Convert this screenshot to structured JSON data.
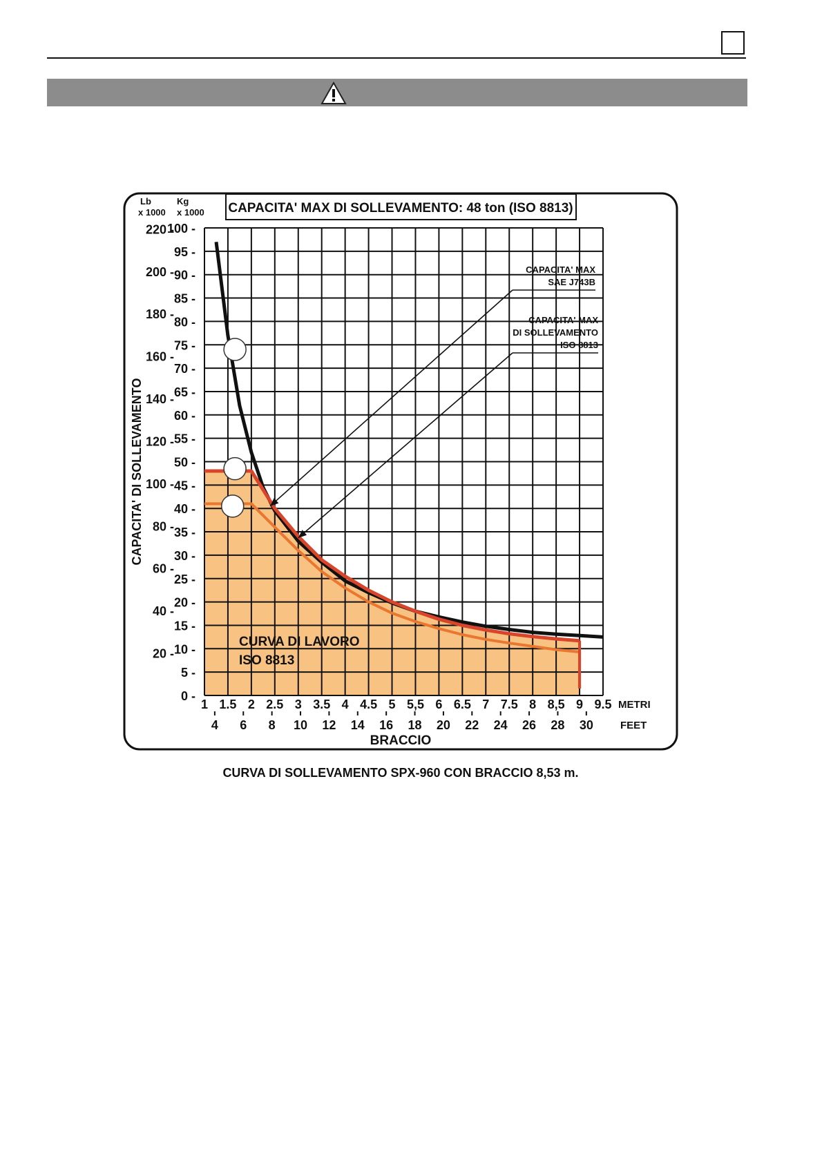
{
  "page": {
    "warning_icon": "warning-triangle-icon"
  },
  "chart_data": {
    "type": "line",
    "title": "CAPACITA' MAX DI SOLLEVAMENTO: 48 ton (ISO 8813)",
    "caption": "CURVA DI SOLLEVAMENTO SPX-960 CON BRACCIO 8,53 m.",
    "ylabel": "CAPACITA' DI SOLLEVAMENTO",
    "xlabel": "BRACCIO",
    "y_unit_lb": [
      "Lb",
      "x 1000"
    ],
    "y_unit_kg": [
      "Kg",
      "x 1000"
    ],
    "x_unit_m": "METRI",
    "x_unit_ft": "FEET",
    "xlim": [
      1,
      9.5
    ],
    "ylim": [
      0,
      100
    ],
    "x_ticks": [
      1,
      1.5,
      2,
      2.5,
      3,
      3.5,
      4,
      4.5,
      5,
      5.5,
      6,
      6.5,
      7,
      7.5,
      8,
      8.5,
      9,
      9.5
    ],
    "x_tick_labels": [
      "1",
      "1.5",
      "2",
      "2.5",
      "3",
      "3.5",
      "4",
      "4.5",
      "5",
      "5,5",
      "6",
      "6.5",
      "7",
      "7.5",
      "8",
      "8,5",
      "9",
      "9.5"
    ],
    "y_ticks_kg": [
      0,
      5,
      10,
      15,
      20,
      25,
      30,
      35,
      40,
      45,
      50,
      55,
      60,
      65,
      70,
      75,
      80,
      85,
      90,
      95,
      100
    ],
    "y_ticks_lb": [
      20,
      40,
      60,
      80,
      100,
      120,
      140,
      160,
      180,
      200,
      220
    ],
    "ft_ticks": [
      4,
      6,
      8,
      10,
      12,
      14,
      16,
      18,
      20,
      22,
      24,
      26,
      28,
      30
    ],
    "series": [
      {
        "name": "CAPACITA' MAX SAE J743B",
        "color": "#111111",
        "x": [
          1.25,
          1.5,
          1.75,
          2.0,
          2.25,
          2.5,
          3.0,
          3.5,
          4.0,
          4.5,
          5.0,
          5.5,
          6.0,
          6.5,
          7.0,
          7.5,
          8.0,
          8.5,
          9.0,
          9.5
        ],
        "y": [
          97,
          77,
          62,
          52,
          44.5,
          39.5,
          33,
          28.5,
          24.5,
          22,
          19.8,
          18,
          16.8,
          15.7,
          14.8,
          14.1,
          13.5,
          13.1,
          12.8,
          12.5
        ]
      },
      {
        "name": "CAPACITA' MAX DI SOLLEVAMENTO ISO 8813",
        "color": "#d8452a",
        "x": [
          1.0,
          2.0,
          2.5,
          3.0,
          3.5,
          4.0,
          4.5,
          5.0,
          5.5,
          6.0,
          6.5,
          7.0,
          7.5,
          8.0,
          8.5,
          9.0
        ],
        "y": [
          48,
          48,
          40,
          34,
          29,
          25.5,
          22.5,
          20,
          18,
          16.3,
          15,
          14,
          13.2,
          12.6,
          12.1,
          11.7
        ]
      },
      {
        "name": "CURVA DI LAVORO ISO 8813",
        "color": "#e9772f",
        "x": [
          1.0,
          2.0,
          2.5,
          3.0,
          3.5,
          4.0,
          4.5,
          5.0,
          5.5,
          6.0,
          6.5,
          7.0,
          7.5,
          8.0,
          8.5,
          9.0
        ],
        "y": [
          41,
          41,
          36,
          31,
          26.5,
          23,
          20,
          17.6,
          15.8,
          14.3,
          13,
          12,
          11.2,
          10.5,
          9.8,
          9.3
        ]
      }
    ],
    "annotations": [
      {
        "text": "CAPACITA' MAX",
        "group": "sae"
      },
      {
        "text": "SAE J743B",
        "group": "sae"
      },
      {
        "text": "CAPACITA' MAX",
        "group": "iso"
      },
      {
        "text": "DI SOLLEVAMENTO",
        "group": "iso"
      },
      {
        "text": "ISO 8813",
        "group": "iso"
      },
      {
        "text": "CURVA DI LAVORO",
        "group": "work"
      },
      {
        "text": "ISO 8813",
        "group": "work"
      }
    ]
  }
}
